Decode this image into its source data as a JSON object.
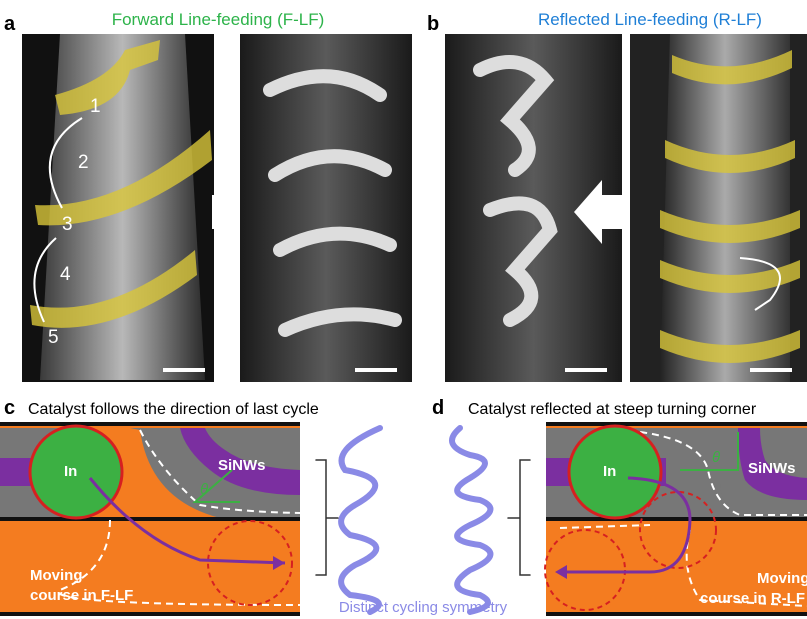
{
  "panels": [
    {
      "letter": "a",
      "title": "Forward Line-feeding (F-LF)",
      "labels": [
        "1",
        "2",
        "3",
        "4",
        "5"
      ]
    },
    {
      "letter": "b",
      "title": "Reflected Line-feeding (R-LF)"
    },
    {
      "letter": "c",
      "title": "Catalyst follows the direction of last cycle",
      "catalyst": "In",
      "material": "SiNWs",
      "angle": "θ",
      "course": [
        "Moving",
        "course in F-LF"
      ]
    },
    {
      "letter": "d",
      "title": "Catalyst reflected at steep turning corner",
      "catalyst": "In",
      "material": "SiNWs",
      "angle": "θ",
      "course": [
        "Moving",
        "course in R-LF"
      ]
    }
  ],
  "caption": "Distinct cycling symmetry"
}
